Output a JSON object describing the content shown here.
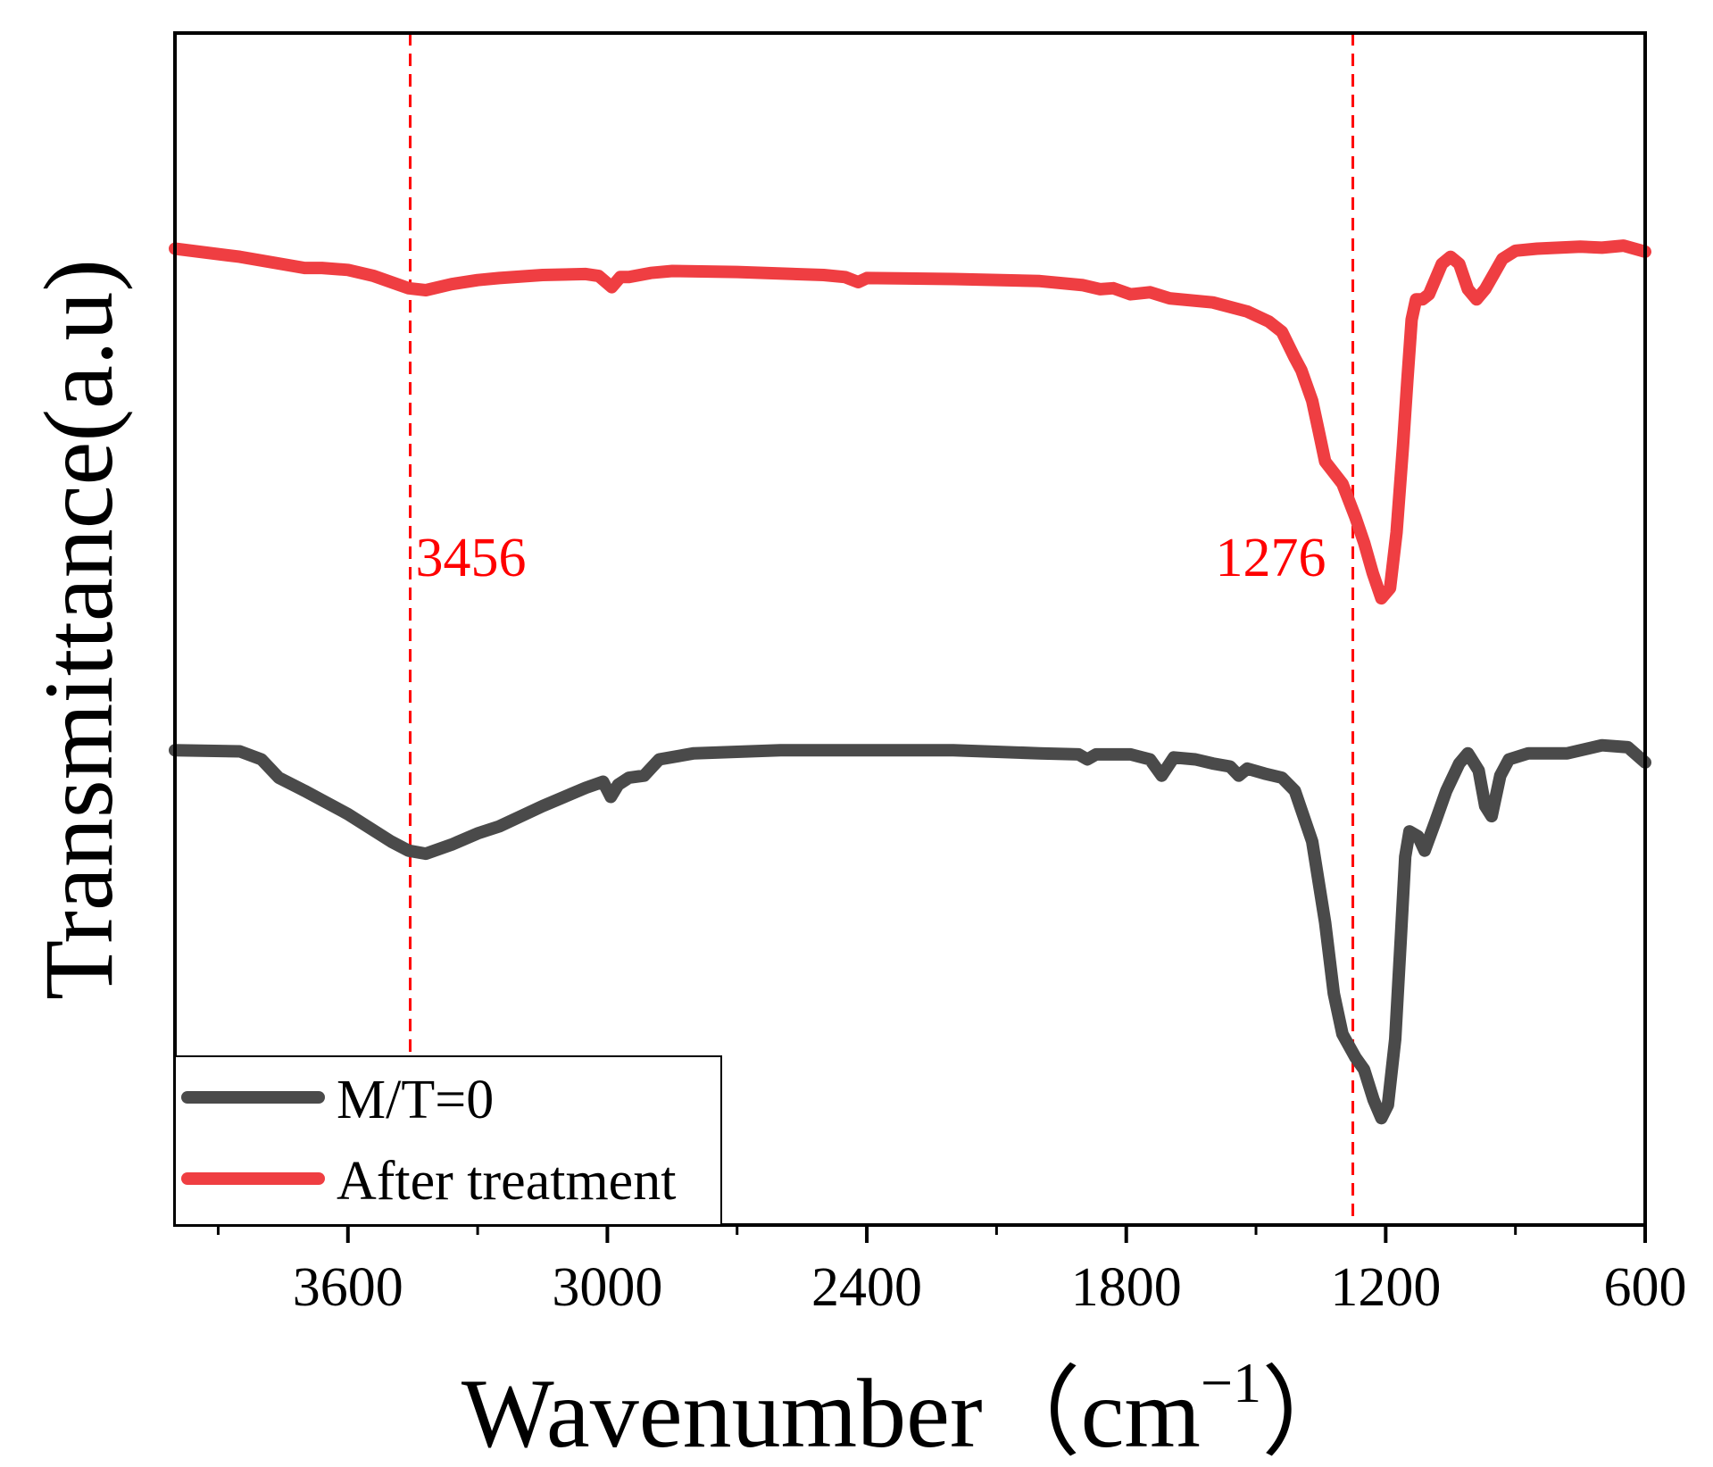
{
  "chart_data": {
    "type": "line",
    "xlabel": "Wavenumber（cm",
    "xlabel_superscript": "−1",
    "xlabel_close": "）",
    "ylabel": "Transmittance(a.u)",
    "xlim": [
      4000,
      600
    ],
    "x_reversed": true,
    "ylim": [
      0,
      100
    ],
    "y_ticks_shown": false,
    "grid": false,
    "legend_position": "bottom-left",
    "x_ticks": [
      {
        "value": 3600,
        "label": "3600"
      },
      {
        "value": 3000,
        "label": "3000"
      },
      {
        "value": 2400,
        "label": "2400"
      },
      {
        "value": 1800,
        "label": "1800"
      },
      {
        "value": 1200,
        "label": "1200"
      },
      {
        "value": 600,
        "label": "600"
      }
    ],
    "x_minor_ticks": [
      3900,
      3300,
      2700,
      2100,
      1500,
      900
    ],
    "annotations": [
      {
        "x": 3456,
        "label": "3456",
        "color": "#ff0000"
      },
      {
        "x": 1276,
        "label": "1276",
        "color": "#ff0000"
      }
    ],
    "series": [
      {
        "name": "M/T=0",
        "color": "#4a4a4a",
        "points": [
          [
            4000,
            40.5
          ],
          [
            3850,
            40.4
          ],
          [
            3800,
            39.6
          ],
          [
            3760,
            37.8
          ],
          [
            3700,
            36.5
          ],
          [
            3600,
            34.2
          ],
          [
            3500,
            31.5
          ],
          [
            3460,
            30.6
          ],
          [
            3420,
            30.3
          ],
          [
            3360,
            31.2
          ],
          [
            3300,
            32.3
          ],
          [
            3250,
            33.0
          ],
          [
            3150,
            35.0
          ],
          [
            3050,
            36.8
          ],
          [
            3010,
            37.4
          ],
          [
            2992,
            35.9
          ],
          [
            2975,
            37.1
          ],
          [
            2950,
            37.8
          ],
          [
            2915,
            38.0
          ],
          [
            2880,
            39.6
          ],
          [
            2800,
            40.2
          ],
          [
            2600,
            40.5
          ],
          [
            2400,
            40.5
          ],
          [
            2200,
            40.5
          ],
          [
            2000,
            40.2
          ],
          [
            1910,
            40.1
          ],
          [
            1890,
            39.6
          ],
          [
            1870,
            40.1
          ],
          [
            1790,
            40.1
          ],
          [
            1745,
            39.6
          ],
          [
            1718,
            38.0
          ],
          [
            1690,
            39.8
          ],
          [
            1640,
            39.6
          ],
          [
            1600,
            39.2
          ],
          [
            1560,
            38.9
          ],
          [
            1540,
            38.0
          ],
          [
            1520,
            38.7
          ],
          [
            1480,
            38.2
          ],
          [
            1440,
            37.8
          ],
          [
            1410,
            36.5
          ],
          [
            1370,
            31.5
          ],
          [
            1340,
            23.5
          ],
          [
            1320,
            16.5
          ],
          [
            1300,
            12.5
          ],
          [
            1270,
            10.2
          ],
          [
            1250,
            9.0
          ],
          [
            1228,
            6.0
          ],
          [
            1210,
            4.2
          ],
          [
            1195,
            5.5
          ],
          [
            1178,
            12.0
          ],
          [
            1165,
            22.0
          ],
          [
            1155,
            30.0
          ],
          [
            1145,
            32.5
          ],
          [
            1125,
            32.0
          ],
          [
            1110,
            30.6
          ],
          [
            1085,
            33.5
          ],
          [
            1060,
            36.5
          ],
          [
            1030,
            39.2
          ],
          [
            1010,
            40.2
          ],
          [
            985,
            38.5
          ],
          [
            970,
            35.0
          ],
          [
            955,
            34.0
          ],
          [
            935,
            38.0
          ],
          [
            915,
            39.6
          ],
          [
            870,
            40.2
          ],
          [
            780,
            40.2
          ],
          [
            700,
            41.0
          ],
          [
            640,
            40.8
          ],
          [
            600,
            39.3
          ]
        ]
      },
      {
        "name": "After treatment",
        "color": "#ef3e42",
        "points": [
          [
            4000,
            90.0
          ],
          [
            3850,
            89.2
          ],
          [
            3700,
            88.1
          ],
          [
            3660,
            88.1
          ],
          [
            3600,
            87.9
          ],
          [
            3540,
            87.3
          ],
          [
            3480,
            86.4
          ],
          [
            3460,
            86.1
          ],
          [
            3420,
            85.9
          ],
          [
            3360,
            86.5
          ],
          [
            3300,
            86.9
          ],
          [
            3250,
            87.1
          ],
          [
            3150,
            87.4
          ],
          [
            3050,
            87.5
          ],
          [
            3020,
            87.3
          ],
          [
            2990,
            86.2
          ],
          [
            2970,
            87.2
          ],
          [
            2950,
            87.2
          ],
          [
            2900,
            87.6
          ],
          [
            2850,
            87.8
          ],
          [
            2700,
            87.7
          ],
          [
            2500,
            87.4
          ],
          [
            2450,
            87.2
          ],
          [
            2420,
            86.7
          ],
          [
            2400,
            87.1
          ],
          [
            2200,
            87.0
          ],
          [
            2000,
            86.8
          ],
          [
            1900,
            86.4
          ],
          [
            1860,
            86.0
          ],
          [
            1830,
            86.1
          ],
          [
            1790,
            85.5
          ],
          [
            1745,
            85.7
          ],
          [
            1700,
            85.1
          ],
          [
            1600,
            84.7
          ],
          [
            1520,
            83.8
          ],
          [
            1470,
            82.8
          ],
          [
            1440,
            81.8
          ],
          [
            1410,
            79.2
          ],
          [
            1395,
            78.0
          ],
          [
            1370,
            75.0
          ],
          [
            1355,
            72.0
          ],
          [
            1340,
            69.0
          ],
          [
            1300,
            66.8
          ],
          [
            1270,
            63.5
          ],
          [
            1250,
            61.0
          ],
          [
            1230,
            58.0
          ],
          [
            1210,
            55.5
          ],
          [
            1190,
            56.5
          ],
          [
            1175,
            62.0
          ],
          [
            1160,
            70.5
          ],
          [
            1150,
            77.0
          ],
          [
            1140,
            83.0
          ],
          [
            1130,
            85.0
          ],
          [
            1115,
            85.0
          ],
          [
            1100,
            85.5
          ],
          [
            1070,
            88.5
          ],
          [
            1050,
            89.2
          ],
          [
            1030,
            88.5
          ],
          [
            1010,
            86.0
          ],
          [
            990,
            85.0
          ],
          [
            970,
            86.0
          ],
          [
            950,
            87.5
          ],
          [
            930,
            89.0
          ],
          [
            900,
            89.8
          ],
          [
            850,
            90.0
          ],
          [
            750,
            90.2
          ],
          [
            700,
            90.1
          ],
          [
            650,
            90.3
          ],
          [
            600,
            89.7
          ]
        ]
      }
    ]
  }
}
